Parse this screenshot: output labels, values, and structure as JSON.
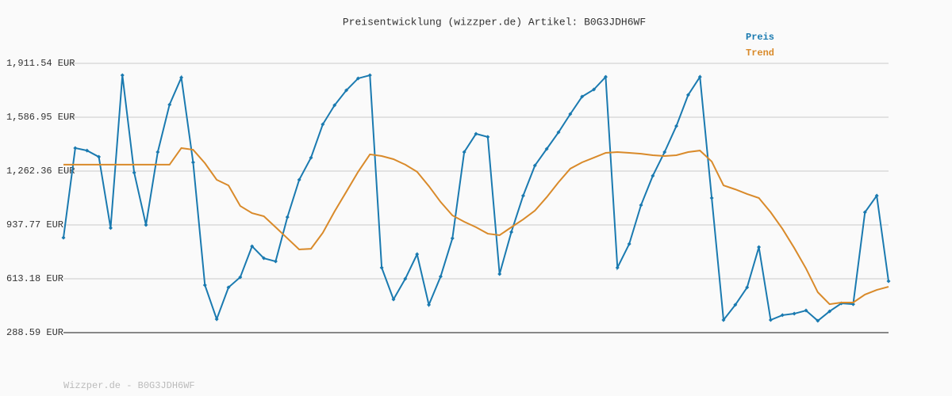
{
  "chart_data": {
    "type": "line",
    "title": "Preisentwicklung (wizzper.de) Artikel: B0G3JDH6WF",
    "footer": "Wizzper.de - B0G3JDH6WF",
    "ylim": [
      288.59,
      1911.54
    ],
    "yticks": [
      {
        "value": 288.59,
        "label": "288.59 EUR"
      },
      {
        "value": 613.18,
        "label": "613.18 EUR"
      },
      {
        "value": 937.77,
        "label": "937.77 EUR"
      },
      {
        "value": 1262.36,
        "label": "1,262.36 EUR"
      },
      {
        "value": 1586.95,
        "label": "1,586.95 EUR"
      },
      {
        "value": 1911.54,
        "label": "1,911.54 EUR"
      }
    ],
    "grid": true,
    "legend": "top-right",
    "series": [
      {
        "name": "Preis",
        "color": "#1a7ab0",
        "markers": true,
        "values": [
          861,
          1401,
          1386,
          1348,
          919,
          1840,
          1253,
          938,
          1377,
          1663,
          1826,
          1315,
          575,
          370,
          561,
          623,
          809,
          737,
          718,
          985,
          1210,
          1343,
          1544,
          1659,
          1749,
          1821,
          1840,
          680,
          489,
          613,
          761,
          456,
          627,
          857,
          1377,
          1487,
          1468,
          642,
          895,
          1114,
          1296,
          1396,
          1496,
          1606,
          1711,
          1754,
          1830,
          680,
          823,
          1057,
          1234,
          1377,
          1534,
          1721,
          1830,
          1100,
          365,
          456,
          561,
          804,
          365,
          394,
          403,
          422,
          360,
          417,
          465,
          460,
          1014,
          1114,
          599
        ]
      },
      {
        "name": "Trend",
        "color": "#d98a2a",
        "markers": false,
        "values": [
          1301,
          1301,
          1301,
          1301,
          1301,
          1301,
          1301,
          1301,
          1301,
          1301,
          1401,
          1391,
          1310,
          1210,
          1176,
          1052,
          1009,
          990,
          924,
          857,
          790,
          794,
          890,
          1019,
          1138,
          1258,
          1363,
          1353,
          1334,
          1301,
          1258,
          1172,
          1076,
          995,
          957,
          924,
          885,
          876,
          924,
          971,
          1024,
          1105,
          1195,
          1277,
          1315,
          1343,
          1372,
          1377,
          1372,
          1367,
          1358,
          1353,
          1358,
          1377,
          1386,
          1320,
          1176,
          1152,
          1124,
          1100,
          1014,
          914,
          799,
          675,
          532,
          460,
          470,
          470,
          518,
          546,
          565
        ]
      }
    ]
  }
}
